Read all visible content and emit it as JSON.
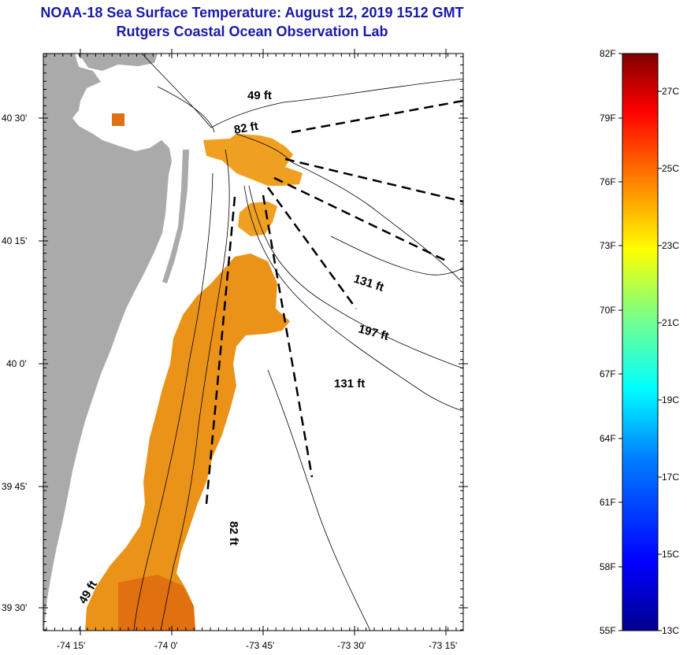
{
  "title_line1": "NOAA-18 Sea Surface Temperature:  August 12, 2019 1512 GMT",
  "title_line2": "Rutgers Coastal Ocean Observation Lab",
  "lat_ticks": [
    "40 30'",
    "40 15'",
    "40 0'",
    "39 45'",
    "39 30'"
  ],
  "lon_ticks": [
    "-74 15'",
    "-74 0'",
    "-73 45'",
    "-73 30'",
    "-73 15'"
  ],
  "depth_labels": [
    "49 ft",
    "82 ft",
    "131 ft",
    "197 ft",
    "131 ft",
    "82 ft",
    "49 ft"
  ],
  "colorbar": {
    "f_labels": [
      "82F",
      "79F",
      "76F",
      "73F",
      "70F",
      "67F",
      "64F",
      "61F",
      "58F",
      "55F"
    ],
    "c_labels": [
      "27C",
      "25C",
      "23C",
      "21C",
      "19C",
      "17C",
      "15C",
      "13C"
    ],
    "range_f": [
      55,
      82
    ],
    "colors": [
      "#00008f",
      "#0000ff",
      "#0080ff",
      "#00ffff",
      "#80ff80",
      "#ffff00",
      "#ff8000",
      "#ff0000",
      "#800000"
    ]
  },
  "colors": {
    "land": "#aaaaaa",
    "sst_warm": "#f0a020",
    "sst_hot": "#e07010",
    "title": "#1a1aa8"
  }
}
